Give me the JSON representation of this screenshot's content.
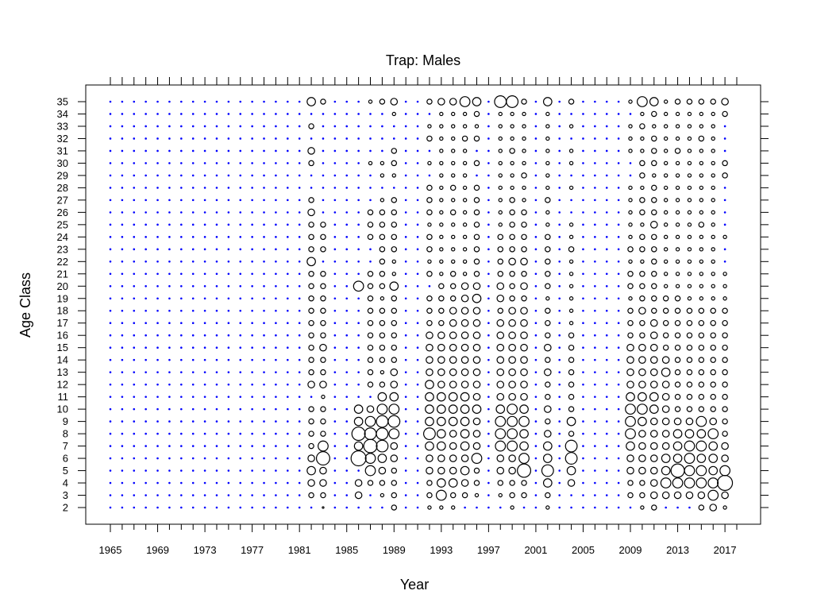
{
  "chart_data": {
    "type": "scatter",
    "title": "Trap: Males",
    "xlabel": "Year",
    "ylabel": "Age Class",
    "xlim": [
      1965,
      2018
    ],
    "ylim": [
      2,
      35
    ],
    "x_ticks": [
      "1965",
      "1969",
      "1973",
      "1977",
      "1981",
      "1985",
      "1989",
      "1993",
      "1997",
      "2001",
      "2005",
      "2009",
      "2013",
      "2017"
    ],
    "y_ticks": [
      "2",
      "3",
      "4",
      "5",
      "6",
      "7",
      "8",
      "9",
      "10",
      "11",
      "12",
      "13",
      "14",
      "15",
      "16",
      "17",
      "18",
      "19",
      "20",
      "21",
      "22",
      "23",
      "24",
      "25",
      "26",
      "27",
      "28",
      "29",
      "30",
      "31",
      "32",
      "33",
      "34",
      "35"
    ],
    "colors": {
      "empty_marker": "#0000ff",
      "bubble": "#000000",
      "frame": "#000000"
    },
    "empty_years_sampled": "all years without bubbles show small blue dots",
    "bubble_years": [
      1982,
      1983,
      1986,
      1987,
      1988,
      1989,
      1992,
      1993,
      1994,
      1995,
      1996,
      1998,
      1999,
      2000,
      2002,
      2004,
      2009,
      2010,
      2011,
      2012,
      2013,
      2014,
      2015,
      2016,
      2017
    ],
    "bubbles": [
      {
        "year": 1982,
        "sizes": {
          "35": 5,
          "33": 3,
          "31": 4,
          "30": 3,
          "27": 3,
          "26": 4,
          "25": 3,
          "24": 3,
          "23": 3,
          "22": 5,
          "21": 3,
          "20": 3,
          "19": 3,
          "18": 3,
          "17": 3,
          "16": 3,
          "15": 3,
          "14": 3,
          "13": 3,
          "12": 4,
          "10": 3,
          "9": 3,
          "8": 3,
          "7": 3,
          "6": 4,
          "5": 5,
          "4": 4,
          "3": 3
        }
      },
      {
        "year": 1983,
        "sizes": {
          "35": 3,
          "25": 3,
          "24": 3,
          "23": 3,
          "21": 3,
          "20": 3,
          "19": 3,
          "18": 3,
          "17": 3,
          "16": 3,
          "15": 4,
          "14": 3,
          "13": 3,
          "12": 4,
          "11": 2,
          "10": 3,
          "9": 3,
          "8": 3,
          "7": 6,
          "6": 8,
          "5": 4,
          "4": 4,
          "3": 3,
          "2": 1
        }
      },
      {
        "year": 1986,
        "sizes": {
          "20": 6,
          "10": 5,
          "9": 5,
          "8": 8,
          "7": 5,
          "6": 9,
          "4": 4,
          "3": 4
        }
      },
      {
        "year": 1987,
        "sizes": {
          "35": 2,
          "30": 2,
          "26": 3,
          "25": 3,
          "24": 3,
          "21": 3,
          "20": 3,
          "19": 3,
          "18": 3,
          "17": 3,
          "16": 3,
          "15": 3,
          "14": 3,
          "13": 3,
          "12": 3,
          "10": 4,
          "9": 6,
          "8": 7,
          "7": 8,
          "6": 6,
          "5": 6,
          "4": 3
        }
      },
      {
        "year": 1988,
        "sizes": {
          "35": 3,
          "30": 2,
          "29": 2,
          "27": 2,
          "26": 3,
          "25": 3,
          "24": 3,
          "23": 3,
          "22": 3,
          "21": 3,
          "20": 3,
          "19": 2,
          "18": 3,
          "17": 3,
          "16": 3,
          "15": 3,
          "14": 3,
          "13": 2,
          "12": 3,
          "11": 5,
          "10": 6,
          "9": 7,
          "8": 7,
          "7": 7,
          "6": 5,
          "5": 4,
          "4": 3,
          "3": 2
        }
      },
      {
        "year": 1989,
        "sizes": {
          "35": 4,
          "34": 2,
          "31": 3,
          "30": 3,
          "29": 2,
          "27": 3,
          "26": 3,
          "25": 3,
          "24": 3,
          "23": 3,
          "22": 2,
          "21": 2,
          "20": 5,
          "19": 3,
          "18": 3,
          "17": 3,
          "16": 3,
          "15": 3,
          "14": 3,
          "13": 4,
          "12": 4,
          "11": 5,
          "10": 6,
          "9": 7,
          "8": 6,
          "7": 4,
          "6": 4,
          "5": 3,
          "4": 3,
          "3": 3,
          "2": 3
        }
      },
      {
        "year": 1992,
        "sizes": {
          "35": 3,
          "33": 2,
          "32": 3,
          "30": 2,
          "28": 3,
          "27": 3,
          "26": 3,
          "25": 2,
          "24": 3,
          "23": 3,
          "22": 2,
          "21": 3,
          "19": 3,
          "18": 3,
          "17": 3,
          "16": 4,
          "15": 4,
          "14": 4,
          "13": 4,
          "12": 5,
          "11": 5,
          "10": 5,
          "9": 5,
          "8": 7,
          "7": 5,
          "6": 4,
          "5": 4,
          "4": 3,
          "3": 3,
          "2": 2
        }
      },
      {
        "year": 1993,
        "sizes": {
          "35": 4,
          "34": 2,
          "33": 2,
          "32": 2,
          "31": 2,
          "30": 2,
          "29": 2,
          "28": 2,
          "27": 2,
          "26": 2,
          "25": 2,
          "24": 2,
          "23": 2,
          "22": 2,
          "21": 2,
          "20": 3,
          "19": 3,
          "18": 3,
          "17": 3,
          "16": 4,
          "15": 4,
          "14": 4,
          "13": 4,
          "12": 4,
          "11": 5,
          "10": 5,
          "9": 5,
          "8": 5,
          "7": 5,
          "6": 4,
          "5": 4,
          "4": 5,
          "3": 6,
          "2": 2
        }
      },
      {
        "year": 1994,
        "sizes": {
          "35": 4,
          "34": 2,
          "33": 2,
          "32": 2,
          "31": 2,
          "30": 2,
          "29": 2,
          "28": 3,
          "27": 2,
          "26": 3,
          "25": 2,
          "24": 2,
          "23": 2,
          "22": 2,
          "21": 3,
          "20": 3,
          "19": 3,
          "18": 4,
          "17": 4,
          "16": 4,
          "15": 4,
          "14": 4,
          "13": 4,
          "12": 4,
          "11": 5,
          "10": 5,
          "9": 5,
          "8": 4,
          "7": 4,
          "6": 4,
          "5": 4,
          "4": 5,
          "3": 3,
          "2": 2
        }
      },
      {
        "year": 1995,
        "sizes": {
          "35": 6,
          "34": 2,
          "33": 2,
          "32": 3,
          "31": 2,
          "30": 2,
          "29": 2,
          "28": 2,
          "27": 2,
          "26": 2,
          "25": 2,
          "24": 2,
          "23": 2,
          "22": 2,
          "21": 2,
          "20": 4,
          "19": 4,
          "18": 4,
          "17": 4,
          "16": 4,
          "15": 4,
          "14": 4,
          "13": 4,
          "12": 4,
          "11": 5,
          "10": 5,
          "9": 5,
          "8": 5,
          "7": 5,
          "6": 4,
          "5": 5,
          "4": 4,
          "3": 3
        }
      },
      {
        "year": 1996,
        "sizes": {
          "35": 5,
          "34": 3,
          "33": 2,
          "32": 3,
          "30": 3,
          "28": 3,
          "27": 3,
          "26": 3,
          "25": 3,
          "24": 3,
          "23": 3,
          "22": 3,
          "21": 3,
          "20": 4,
          "19": 5,
          "18": 4,
          "17": 4,
          "16": 4,
          "15": 4,
          "14": 4,
          "13": 4,
          "12": 4,
          "11": 4,
          "10": 5,
          "9": 4,
          "8": 4,
          "7": 4,
          "6": 6,
          "5": 3,
          "4": 3,
          "3": 2
        }
      },
      {
        "year": 1998,
        "sizes": {
          "35": 7,
          "34": 2,
          "33": 2,
          "32": 2,
          "31": 2,
          "30": 2,
          "29": 2,
          "28": 2,
          "27": 2,
          "26": 2,
          "25": 2,
          "24": 3,
          "23": 3,
          "22": 3,
          "21": 3,
          "20": 4,
          "19": 4,
          "18": 3,
          "17": 4,
          "16": 4,
          "15": 4,
          "14": 4,
          "13": 4,
          "12": 4,
          "11": 4,
          "10": 5,
          "9": 6,
          "8": 6,
          "7": 6,
          "6": 4,
          "5": 4,
          "4": 3,
          "3": 2
        }
      },
      {
        "year": 1999,
        "sizes": {
          "35": 7,
          "34": 2,
          "33": 2,
          "32": 2,
          "31": 3,
          "30": 2,
          "29": 2,
          "28": 2,
          "27": 3,
          "26": 3,
          "25": 3,
          "24": 3,
          "23": 3,
          "22": 4,
          "21": 3,
          "20": 3,
          "19": 3,
          "18": 4,
          "17": 4,
          "16": 4,
          "15": 4,
          "14": 4,
          "13": 4,
          "12": 4,
          "11": 4,
          "10": 6,
          "9": 6,
          "8": 6,
          "7": 6,
          "6": 4,
          "5": 4,
          "4": 3,
          "3": 3,
          "2": 2
        }
      },
      {
        "year": 2000,
        "sizes": {
          "35": 3,
          "34": 2,
          "33": 2,
          "32": 2,
          "31": 2,
          "30": 2,
          "29": 3,
          "28": 2,
          "27": 2,
          "26": 3,
          "25": 3,
          "24": 3,
          "23": 3,
          "22": 4,
          "21": 3,
          "20": 4,
          "19": 3,
          "18": 4,
          "17": 4,
          "16": 4,
          "15": 4,
          "14": 4,
          "13": 4,
          "12": 4,
          "11": 4,
          "10": 5,
          "9": 6,
          "8": 5,
          "7": 5,
          "6": 6,
          "5": 8,
          "4": 3,
          "3": 3
        }
      },
      {
        "year": 2002,
        "sizes": {
          "35": 5,
          "34": 2,
          "33": 2,
          "32": 2,
          "31": 2,
          "30": 2,
          "29": 2,
          "28": 2,
          "27": 3,
          "26": 2,
          "25": 2,
          "24": 3,
          "23": 3,
          "22": 3,
          "21": 3,
          "20": 3,
          "19": 2,
          "18": 3,
          "17": 3,
          "16": 3,
          "15": 4,
          "14": 3,
          "13": 4,
          "12": 3,
          "11": 3,
          "10": 4,
          "9": 3,
          "8": 4,
          "7": 5,
          "6": 5,
          "5": 7,
          "4": 5,
          "3": 3,
          "2": 2
        }
      },
      {
        "year": 2004,
        "sizes": {
          "35": 3,
          "33": 2,
          "31": 2,
          "30": 2,
          "28": 2,
          "25": 2,
          "24": 2,
          "23": 3,
          "22": 2,
          "21": 2,
          "20": 2,
          "19": 2,
          "18": 2,
          "17": 2,
          "16": 3,
          "15": 3,
          "14": 3,
          "13": 3,
          "12": 3,
          "11": 3,
          "10": 3,
          "9": 5,
          "8": 3,
          "7": 7,
          "6": 7,
          "5": 5,
          "4": 4
        }
      },
      {
        "year": 2009,
        "sizes": {
          "35": 2,
          "33": 2,
          "32": 2,
          "31": 2,
          "28": 2,
          "27": 2,
          "26": 2,
          "25": 2,
          "24": 2,
          "23": 3,
          "22": 2,
          "21": 3,
          "20": 3,
          "19": 2,
          "18": 3,
          "17": 3,
          "16": 3,
          "15": 4,
          "14": 4,
          "13": 4,
          "12": 4,
          "11": 5,
          "10": 6,
          "9": 6,
          "8": 6,
          "7": 5,
          "6": 4,
          "5": 4,
          "4": 3,
          "3": 3
        }
      },
      {
        "year": 2010,
        "sizes": {
          "35": 6,
          "34": 2,
          "33": 3,
          "32": 2,
          "31": 2,
          "30": 3,
          "29": 3,
          "28": 2,
          "27": 3,
          "26": 3,
          "25": 2,
          "24": 3,
          "23": 3,
          "22": 2,
          "21": 3,
          "20": 3,
          "19": 3,
          "18": 4,
          "17": 3,
          "16": 3,
          "15": 4,
          "14": 4,
          "13": 4,
          "12": 4,
          "11": 5,
          "10": 6,
          "9": 5,
          "8": 4,
          "7": 4,
          "6": 4,
          "5": 4,
          "4": 3,
          "3": 3,
          "2": 2
        }
      },
      {
        "year": 2011,
        "sizes": {
          "35": 5,
          "34": 3,
          "33": 2,
          "32": 3,
          "31": 3,
          "30": 3,
          "29": 2,
          "28": 3,
          "27": 3,
          "26": 3,
          "25": 4,
          "24": 3,
          "23": 3,
          "22": 3,
          "21": 3,
          "20": 3,
          "19": 3,
          "18": 3,
          "17": 4,
          "16": 4,
          "15": 4,
          "14": 4,
          "13": 4,
          "12": 4,
          "11": 5,
          "10": 5,
          "9": 4,
          "8": 4,
          "7": 4,
          "6": 4,
          "5": 4,
          "4": 4,
          "3": 4,
          "2": 3
        }
      },
      {
        "year": 2012,
        "sizes": {
          "35": 2,
          "34": 2,
          "33": 2,
          "32": 2,
          "31": 2,
          "30": 2,
          "29": 2,
          "28": 2,
          "27": 2,
          "26": 2,
          "25": 2,
          "24": 2,
          "23": 2,
          "22": 2,
          "21": 2,
          "20": 2,
          "19": 3,
          "18": 3,
          "17": 3,
          "16": 3,
          "15": 3,
          "14": 4,
          "13": 5,
          "12": 4,
          "11": 4,
          "10": 4,
          "9": 4,
          "8": 4,
          "7": 4,
          "6": 5,
          "5": 5,
          "4": 6,
          "3": 4
        }
      },
      {
        "year": 2013,
        "sizes": {
          "35": 3,
          "34": 2,
          "33": 2,
          "32": 2,
          "31": 3,
          "30": 2,
          "29": 2,
          "28": 2,
          "27": 2,
          "26": 2,
          "25": 2,
          "24": 2,
          "23": 2,
          "22": 2,
          "21": 2,
          "20": 2,
          "19": 3,
          "18": 3,
          "17": 3,
          "16": 3,
          "15": 3,
          "14": 3,
          "13": 3,
          "12": 3,
          "11": 3,
          "10": 3,
          "9": 4,
          "8": 5,
          "7": 5,
          "6": 5,
          "5": 8,
          "4": 6,
          "3": 4
        }
      },
      {
        "year": 2014,
        "sizes": {
          "35": 3,
          "34": 2,
          "33": 2,
          "32": 2,
          "31": 2,
          "30": 2,
          "29": 2,
          "28": 2,
          "27": 2,
          "26": 2,
          "25": 2,
          "24": 2,
          "23": 2,
          "22": 2,
          "21": 2,
          "20": 2,
          "19": 2,
          "18": 3,
          "17": 3,
          "16": 3,
          "15": 3,
          "14": 3,
          "13": 3,
          "12": 3,
          "11": 3,
          "10": 3,
          "9": 4,
          "8": 5,
          "7": 6,
          "6": 6,
          "5": 6,
          "4": 6,
          "3": 4
        }
      },
      {
        "year": 2015,
        "sizes": {
          "35": 3,
          "34": 2,
          "33": 2,
          "32": 3,
          "31": 2,
          "30": 2,
          "29": 2,
          "28": 2,
          "27": 2,
          "26": 2,
          "25": 3,
          "24": 2,
          "23": 2,
          "22": 2,
          "21": 2,
          "20": 2,
          "19": 2,
          "18": 3,
          "17": 3,
          "16": 3,
          "15": 3,
          "14": 3,
          "13": 3,
          "12": 3,
          "11": 3,
          "10": 3,
          "9": 6,
          "8": 5,
          "7": 6,
          "6": 5,
          "5": 6,
          "4": 6,
          "3": 4,
          "2": 3
        }
      },
      {
        "year": 2016,
        "sizes": {
          "35": 3,
          "34": 2,
          "33": 2,
          "32": 2,
          "31": 2,
          "30": 2,
          "29": 2,
          "28": 2,
          "27": 2,
          "26": 2,
          "25": 2,
          "24": 2,
          "23": 2,
          "22": 2,
          "21": 2,
          "20": 2,
          "19": 2,
          "18": 3,
          "17": 3,
          "16": 3,
          "15": 3,
          "14": 3,
          "13": 3,
          "12": 3,
          "11": 3,
          "10": 3,
          "9": 4,
          "8": 6,
          "7": 5,
          "6": 5,
          "5": 5,
          "4": 6,
          "3": 6,
          "2": 4
        }
      },
      {
        "year": 2017,
        "sizes": {
          "35": 4,
          "34": 3,
          "30": 3,
          "29": 3,
          "24": 2,
          "21": 2,
          "20": 2,
          "19": 2,
          "18": 3,
          "17": 3,
          "16": 3,
          "15": 3,
          "14": 3,
          "13": 3,
          "12": 3,
          "11": 3,
          "10": 3,
          "9": 3,
          "8": 3,
          "7": 4,
          "6": 4,
          "5": 6,
          "4": 9,
          "3": 4,
          "2": 2
        }
      }
    ]
  }
}
